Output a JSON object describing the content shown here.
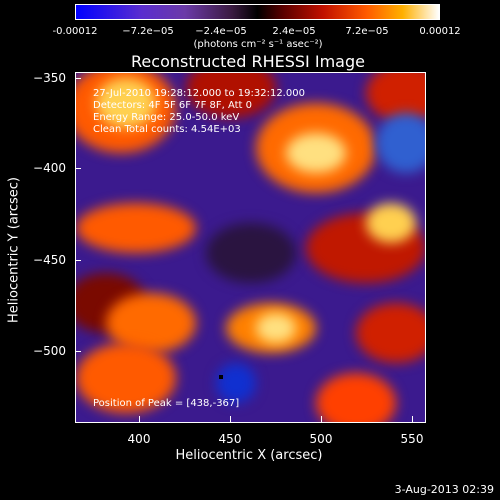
{
  "colorbar": {
    "ticks": [
      "-0.00012",
      "−7.2e−05",
      "−2.4e−05",
      "2.4e−05",
      "7.2e−05",
      "0.00012"
    ],
    "units": "(photons cm⁻² s⁻¹ asec⁻²)"
  },
  "title": "Reconstructed RHESSI Image",
  "annotation": {
    "line1": "27-Jul-2010 19:28:12.000 to 19:32:12.000",
    "line2": "Detectors: 4F 5F 6F 7F 8F, Att 0",
    "line3": "Energy Range: 25.0-50.0 keV",
    "line4": "Clean    Total counts: 4.54E+03",
    "peak": "Position of Peak = [438,-367]"
  },
  "axes": {
    "xlabel": "Heliocentric X (arcsec)",
    "ylabel": "Heliocentric Y (arcsec)",
    "xticks": [
      "400",
      "450",
      "500",
      "550"
    ],
    "yticks": [
      "−350",
      "−400",
      "−450",
      "−500"
    ]
  },
  "footer": "3-Aug-2013 02:39"
}
